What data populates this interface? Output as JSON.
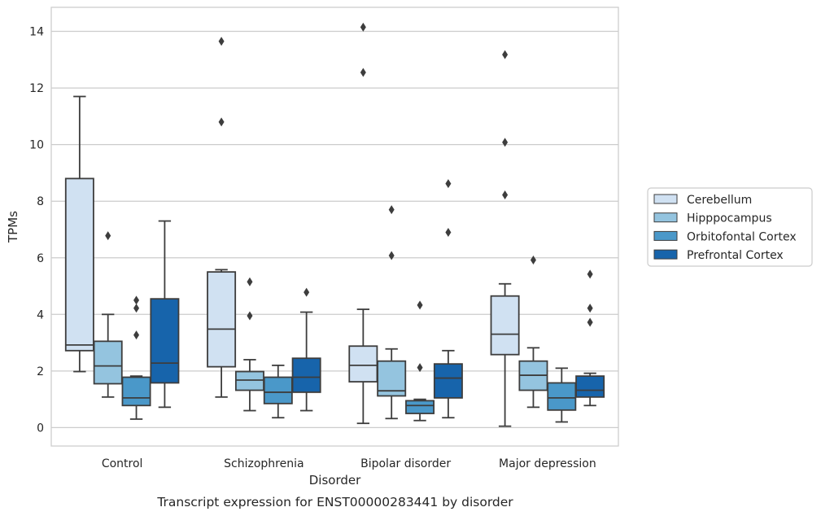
{
  "chart_data": {
    "type": "boxplot",
    "title": "",
    "caption": "Transcript expression for ENST00000283441 by disorder",
    "xlabel": "Disorder",
    "ylabel": "TPMs",
    "ylim": [
      -0.65,
      14.85
    ],
    "yticks": [
      0,
      2,
      4,
      6,
      8,
      10,
      12,
      14
    ],
    "grid": "horizontal",
    "legend_position": "right",
    "categories": [
      "Control",
      "Schizophrenia",
      "Bipolar disorder",
      "Major depression"
    ],
    "series": [
      {
        "name": "Cerebellum",
        "color": "#d0e1f2",
        "boxes": [
          {
            "q1": 2.72,
            "median": 2.92,
            "q3": 8.8,
            "whisker_low": 1.98,
            "whisker_high": 11.7,
            "outliers": []
          },
          {
            "q1": 2.15,
            "median": 3.48,
            "q3": 5.5,
            "whisker_low": 1.08,
            "whisker_high": 5.58,
            "outliers": [
              10.8,
              13.65
            ]
          },
          {
            "q1": 1.62,
            "median": 2.2,
            "q3": 2.88,
            "whisker_low": 0.15,
            "whisker_high": 4.18,
            "outliers": [
              12.55,
              14.15
            ]
          },
          {
            "q1": 2.58,
            "median": 3.3,
            "q3": 4.65,
            "whisker_low": 0.05,
            "whisker_high": 5.08,
            "outliers": [
              8.22,
              10.08,
              13.18
            ]
          }
        ]
      },
      {
        "name": "Hipppocampus",
        "color": "#94c4df",
        "boxes": [
          {
            "q1": 1.55,
            "median": 2.18,
            "q3": 3.05,
            "whisker_low": 1.08,
            "whisker_high": 4.0,
            "outliers": [
              6.78
            ]
          },
          {
            "q1": 1.32,
            "median": 1.68,
            "q3": 1.98,
            "whisker_low": 0.6,
            "whisker_high": 2.4,
            "outliers": [
              3.95,
              5.15
            ]
          },
          {
            "q1": 1.12,
            "median": 1.3,
            "q3": 2.35,
            "whisker_low": 0.32,
            "whisker_high": 2.78,
            "outliers": [
              6.08,
              7.7
            ]
          },
          {
            "q1": 1.32,
            "median": 1.85,
            "q3": 2.35,
            "whisker_low": 0.72,
            "whisker_high": 2.82,
            "outliers": [
              5.92
            ]
          }
        ]
      },
      {
        "name": "Orbitofontal Cortex",
        "color": "#4a98c9",
        "boxes": [
          {
            "q1": 0.78,
            "median": 1.05,
            "q3": 1.78,
            "whisker_low": 0.3,
            "whisker_high": 1.82,
            "outliers": [
              3.27,
              4.22,
              4.5
            ]
          },
          {
            "q1": 0.85,
            "median": 1.25,
            "q3": 1.78,
            "whisker_low": 0.35,
            "whisker_high": 2.2,
            "outliers": []
          },
          {
            "q1": 0.5,
            "median": 0.78,
            "q3": 0.95,
            "whisker_low": 0.25,
            "whisker_high": 1.0,
            "outliers": [
              2.12,
              4.33
            ]
          },
          {
            "q1": 0.62,
            "median": 1.05,
            "q3": 1.58,
            "whisker_low": 0.2,
            "whisker_high": 2.1,
            "outliers": []
          }
        ]
      },
      {
        "name": "Prefrontal Cortex",
        "color": "#1764ab",
        "boxes": [
          {
            "q1": 1.58,
            "median": 2.28,
            "q3": 4.55,
            "whisker_low": 0.72,
            "whisker_high": 7.3,
            "outliers": []
          },
          {
            "q1": 1.25,
            "median": 1.78,
            "q3": 2.45,
            "whisker_low": 0.6,
            "whisker_high": 4.08,
            "outliers": [
              4.78
            ]
          },
          {
            "q1": 1.05,
            "median": 1.75,
            "q3": 2.25,
            "whisker_low": 0.35,
            "whisker_high": 2.72,
            "outliers": [
              6.9,
              8.62
            ]
          },
          {
            "q1": 1.08,
            "median": 1.32,
            "q3": 1.82,
            "whisker_low": 0.78,
            "whisker_high": 1.92,
            "outliers": [
              3.72,
              4.22,
              5.42
            ]
          }
        ]
      }
    ]
  }
}
